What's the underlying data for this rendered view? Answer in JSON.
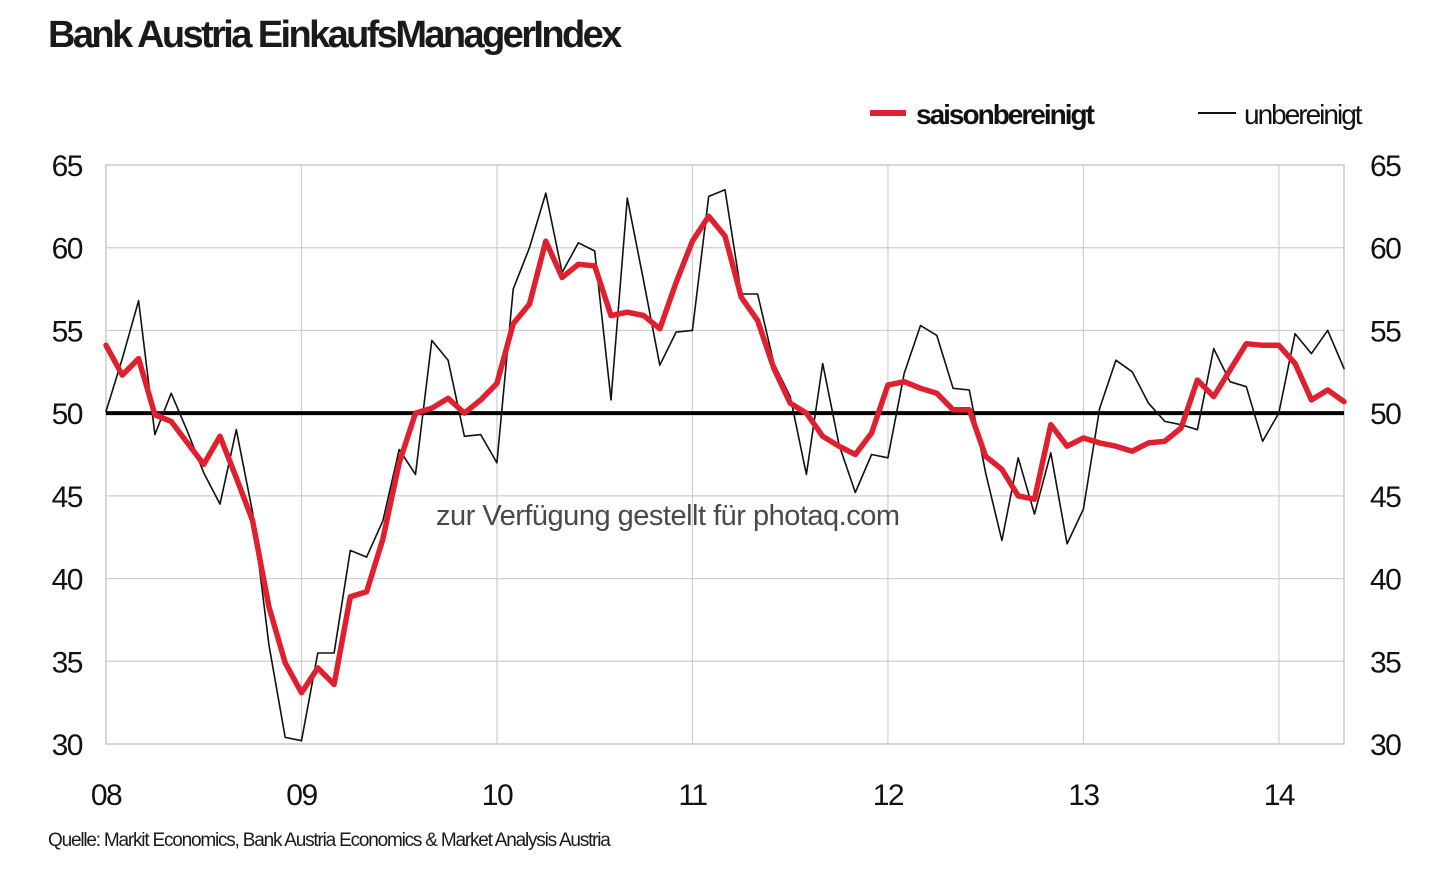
{
  "chart_data": {
    "type": "line",
    "title": "Bank Austria EinkaufsManagerIndex",
    "source": "Quelle: Markit Economics, Bank Austria Economics & Market Analysis Austria",
    "watermark": "zur Verfügung gestellt für photaq.com",
    "xlabel": "",
    "ylabel": "",
    "x_ticks": [
      "08",
      "09",
      "10",
      "11",
      "12",
      "13",
      "14"
    ],
    "y_ticks": [
      30,
      35,
      40,
      45,
      50,
      55,
      60,
      65
    ],
    "ylim": [
      30,
      65
    ],
    "xlim_years": [
      2008.0,
      2014.333
    ],
    "reference_line": 50,
    "grid": true,
    "legend_position": "top-right",
    "series": [
      {
        "name": "saisonbereinigt",
        "color": "#e0202e",
        "values": [
          54.1,
          52.3,
          53.3,
          49.9,
          49.5,
          48.2,
          46.9,
          48.6,
          46.1,
          43.5,
          38.3,
          34.9,
          33.1,
          34.6,
          33.6,
          38.9,
          39.2,
          42.4,
          47.0,
          50.0,
          50.3,
          50.9,
          50.0,
          50.8,
          51.8,
          55.4,
          56.6,
          60.4,
          58.2,
          59.0,
          58.9,
          55.9,
          56.1,
          55.9,
          55.1,
          57.9,
          60.4,
          61.9,
          60.7,
          57.0,
          55.6,
          52.7,
          50.6,
          50.0,
          48.6,
          48.0,
          47.5,
          48.8,
          51.7,
          51.9,
          51.5,
          51.2,
          50.2,
          50.2,
          47.4,
          46.6,
          45.0,
          44.8,
          49.3,
          48.0,
          48.5,
          48.2,
          48.0,
          47.7,
          48.2,
          48.3,
          49.1,
          52.0,
          51.0,
          52.6,
          54.2,
          54.1,
          54.1,
          53.0,
          50.8,
          51.4,
          50.7
        ]
      },
      {
        "name": "unbereinigt",
        "color": "#111111",
        "values": [
          50.1,
          53.3,
          56.8,
          48.7,
          51.2,
          48.9,
          46.4,
          44.5,
          49.0,
          44.0,
          36.0,
          30.4,
          30.2,
          35.5,
          35.5,
          41.7,
          41.3,
          43.5,
          47.8,
          46.3,
          54.4,
          53.2,
          48.6,
          48.7,
          47.0,
          57.5,
          60.0,
          63.3,
          58.5,
          60.3,
          59.8,
          50.8,
          63.0,
          58.0,
          52.9,
          54.9,
          55.0,
          63.1,
          63.5,
          57.2,
          57.2,
          53.0,
          51.0,
          46.3,
          53.0,
          48.1,
          45.2,
          47.5,
          47.3,
          52.4,
          55.3,
          54.7,
          51.5,
          51.4,
          46.4,
          42.3,
          47.3,
          43.9,
          47.6,
          42.1,
          44.2,
          50.3,
          53.2,
          52.5,
          50.6,
          49.5,
          49.3,
          49.0,
          53.9,
          51.9,
          51.6,
          48.3,
          50.0,
          54.8,
          53.6,
          55.0,
          52.7
        ]
      }
    ]
  }
}
